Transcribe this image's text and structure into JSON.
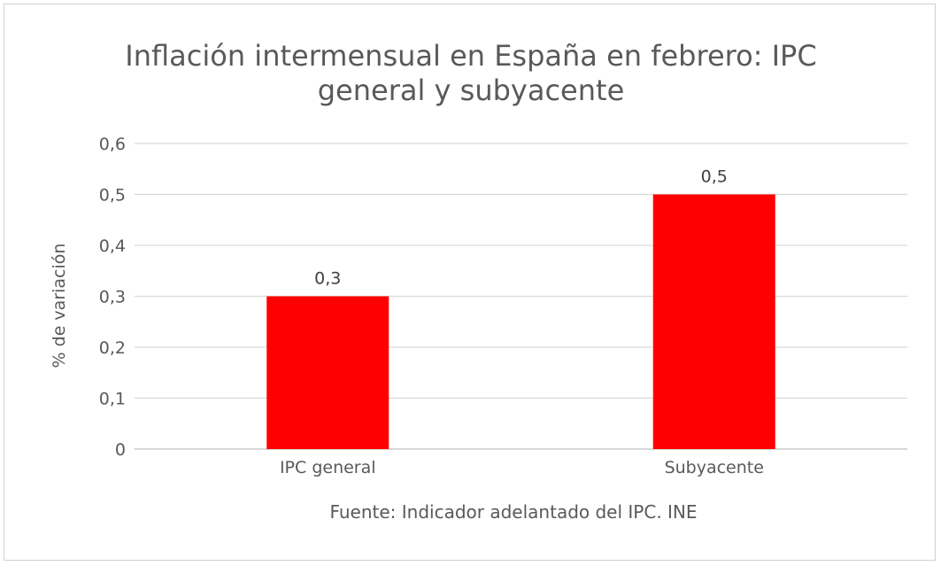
{
  "chart_data": {
    "type": "bar",
    "title_lines": [
      "Inflación intermensual en España en febrero: IPC",
      "general y subyacente"
    ],
    "categories": [
      "IPC general",
      "Subyacente"
    ],
    "values": [
      0.3,
      0.5
    ],
    "data_labels": [
      "0,3",
      "0,5"
    ],
    "ylabel": "% de variación",
    "xlabel": "Fuente: Indicador adelantado del IPC. INE",
    "ylim": [
      0,
      0.6
    ],
    "yticks": [
      0,
      0.1,
      0.2,
      0.3,
      0.4,
      0.5,
      0.6
    ],
    "ytick_labels": [
      "0",
      "0,1",
      "0,2",
      "0,3",
      "0,4",
      "0,5",
      "0,6"
    ],
    "grid": true,
    "bar_color": "#FF0000"
  }
}
